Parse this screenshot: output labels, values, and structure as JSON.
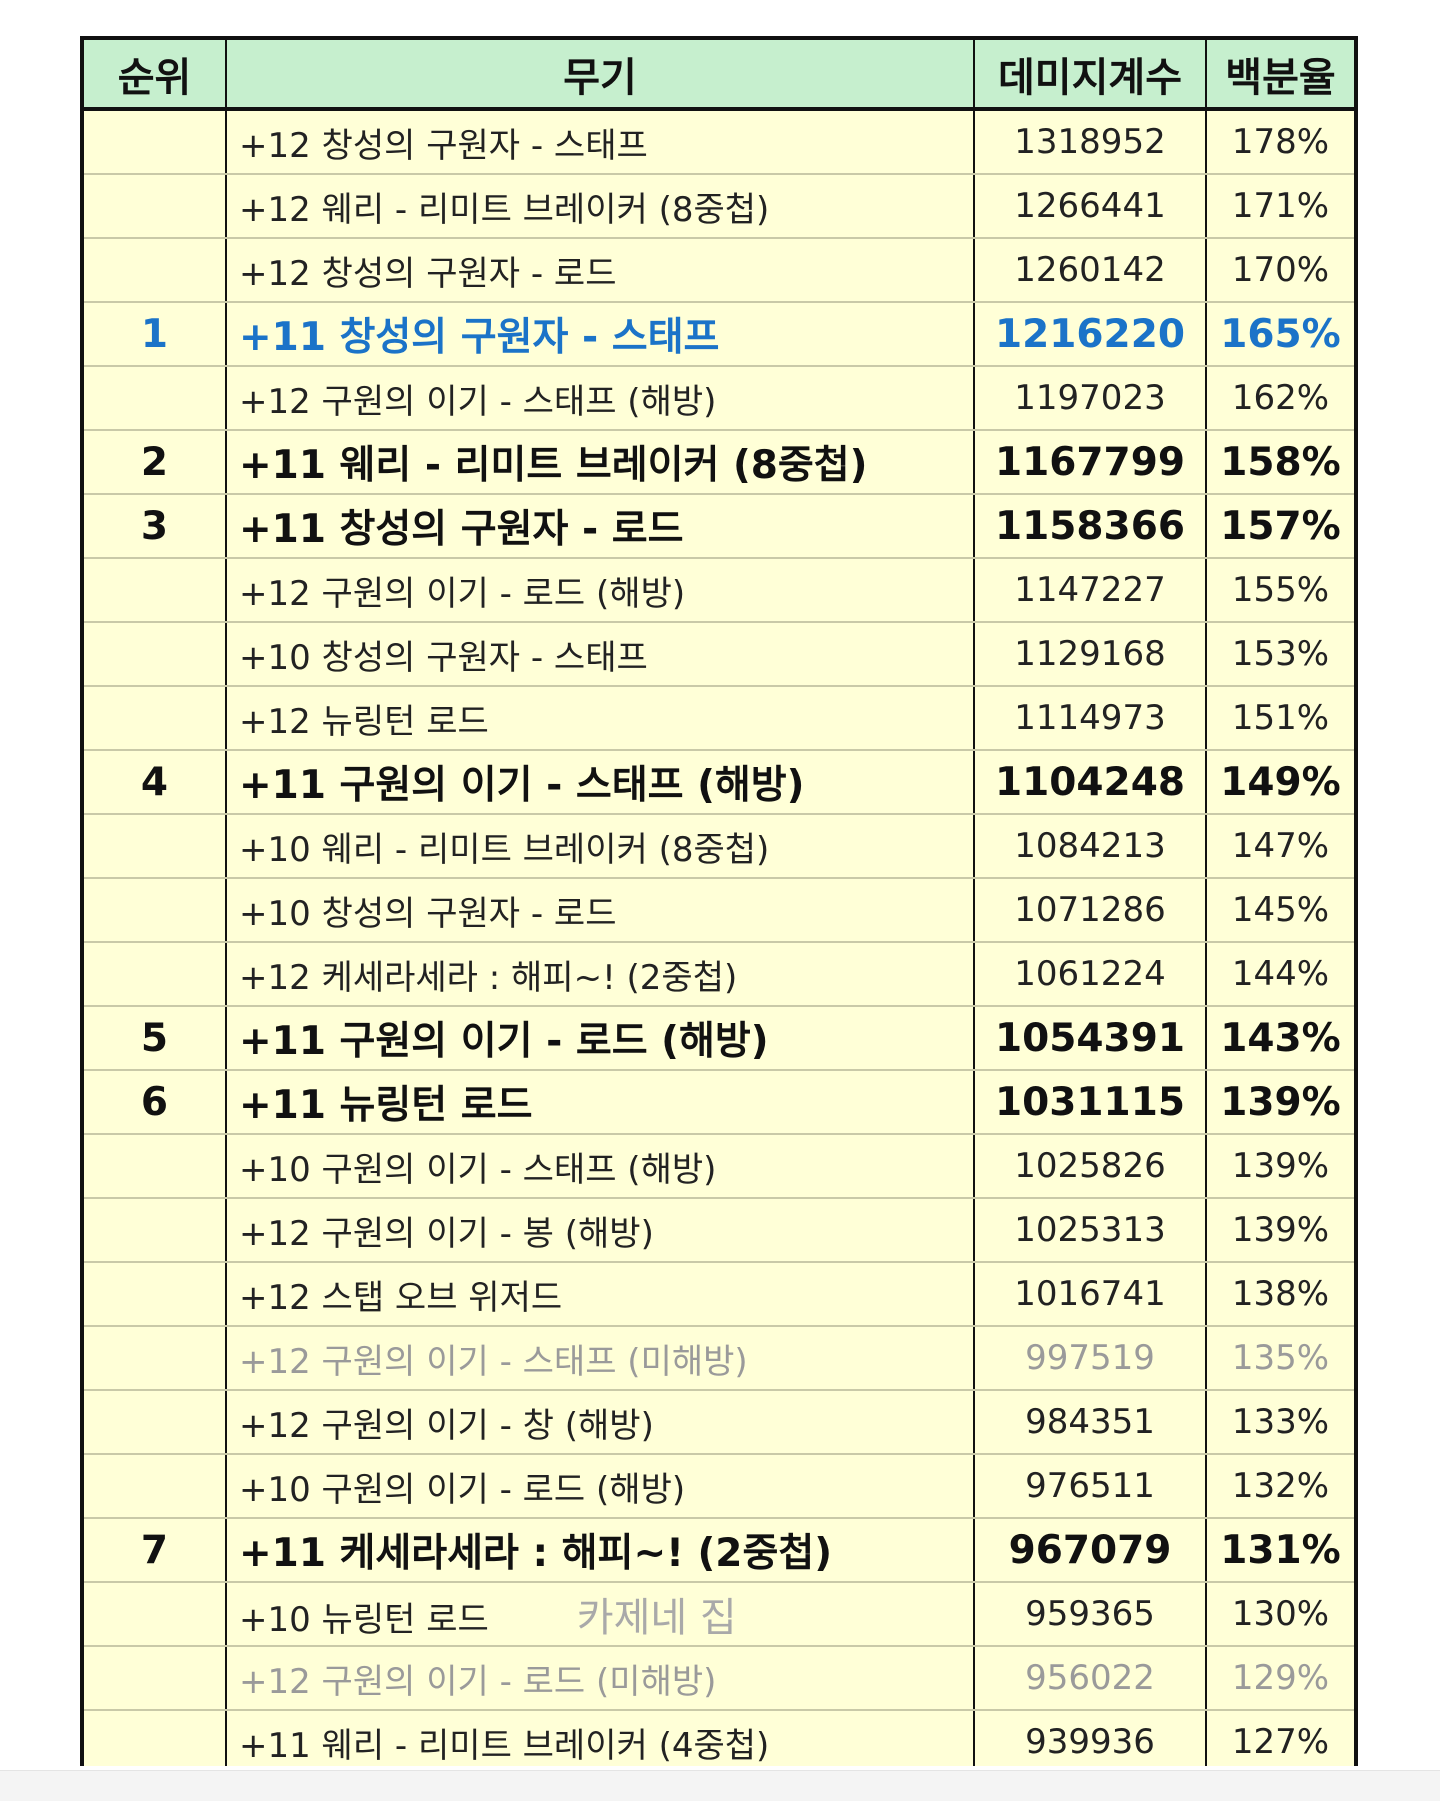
{
  "header": {
    "rank": "순위",
    "weapon": "무기",
    "damage": "데미지계수",
    "percent": "백분율"
  },
  "colors": {
    "header_bg": "#c6efce",
    "row_bg": "#ffffd7",
    "top_rank": "#1b73c8",
    "muted": "#9a9a9a"
  },
  "rows": [
    {
      "rank": "",
      "weapon": "+12 창성의 구원자 - 스태프",
      "damage": "1318952",
      "percent": "178%"
    },
    {
      "rank": "",
      "weapon": "+12 웨리 - 리미트 브레이커 (8중첩)",
      "damage": "1266441",
      "percent": "171%"
    },
    {
      "rank": "",
      "weapon": "+12 창성의 구원자 - 로드",
      "damage": "1260142",
      "percent": "170%"
    },
    {
      "rank": "1",
      "weapon": "+11 창성의 구원자 - 스태프",
      "damage": "1216220",
      "percent": "165%"
    },
    {
      "rank": "",
      "weapon": "+12 구원의 이기 - 스태프 (해방)",
      "damage": "1197023",
      "percent": "162%"
    },
    {
      "rank": "2",
      "weapon": "+11 웨리 - 리미트 브레이커 (8중첩)",
      "damage": "1167799",
      "percent": "158%"
    },
    {
      "rank": "3",
      "weapon": "+11 창성의 구원자 - 로드",
      "damage": "1158366",
      "percent": "157%"
    },
    {
      "rank": "",
      "weapon": "+12 구원의 이기 - 로드 (해방)",
      "damage": "1147227",
      "percent": "155%"
    },
    {
      "rank": "",
      "weapon": "+10 창성의 구원자 - 스태프",
      "damage": "1129168",
      "percent": "153%"
    },
    {
      "rank": "",
      "weapon": "+12 뉴링턴 로드",
      "damage": "1114973",
      "percent": "151%"
    },
    {
      "rank": "4",
      "weapon": "+11 구원의 이기 - 스태프 (해방)",
      "damage": "1104248",
      "percent": "149%"
    },
    {
      "rank": "",
      "weapon": "+10 웨리 - 리미트 브레이커 (8중첩)",
      "damage": "1084213",
      "percent": "147%"
    },
    {
      "rank": "",
      "weapon": "+10 창성의 구원자 - 로드",
      "damage": "1071286",
      "percent": "145%"
    },
    {
      "rank": "",
      "weapon": "+12 케세라세라 : 해피~! (2중첩)",
      "damage": "1061224",
      "percent": "144%"
    },
    {
      "rank": "5",
      "weapon": "+11 구원의 이기 - 로드 (해방)",
      "damage": "1054391",
      "percent": "143%"
    },
    {
      "rank": "6",
      "weapon": "+11 뉴링턴 로드",
      "damage": "1031115",
      "percent": "139%"
    },
    {
      "rank": "",
      "weapon": "+10 구원의 이기 - 스태프 (해방)",
      "damage": "1025826",
      "percent": "139%"
    },
    {
      "rank": "",
      "weapon": "+12 구원의 이기 - 봉 (해방)",
      "damage": "1025313",
      "percent": "139%"
    },
    {
      "rank": "",
      "weapon": "+12 스탭 오브 위저드",
      "damage": "1016741",
      "percent": "138%"
    },
    {
      "rank": "",
      "weapon": "+12 구원의 이기 - 스태프 (미해방)",
      "damage": "997519",
      "percent": "135%"
    },
    {
      "rank": "",
      "weapon": "+12 구원의 이기 - 창 (해방)",
      "damage": "984351",
      "percent": "133%"
    },
    {
      "rank": "",
      "weapon": "+10 구원의 이기 - 로드 (해방)",
      "damage": "976511",
      "percent": "132%"
    },
    {
      "rank": "7",
      "weapon": "+11 케세라세라 : 해피~! (2중첩)",
      "damage": "967079",
      "percent": "131%"
    },
    {
      "rank": "",
      "weapon": "+10 뉴링턴 로드",
      "damage": "959365",
      "percent": "130%",
      "note": "카제네 집"
    },
    {
      "rank": "",
      "weapon": "+12 구원의 이기 - 로드 (미해방)",
      "damage": "956022",
      "percent": "129%"
    },
    {
      "rank": "",
      "weapon": "+11 웨리 - 리미트 브레이커 (4중첩)",
      "damage": "939936",
      "percent": "127%"
    }
  ]
}
